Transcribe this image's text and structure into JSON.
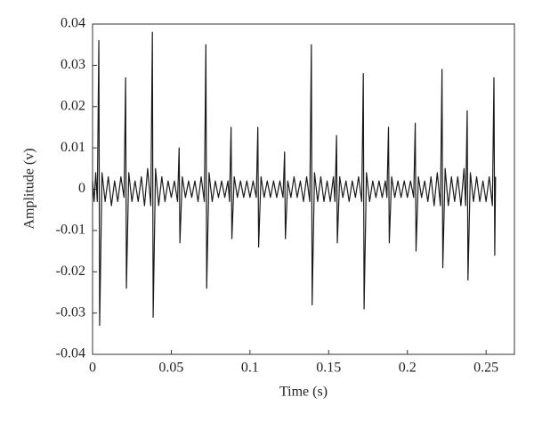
{
  "chart_data": {
    "type": "line",
    "xlabel": "Time (s)",
    "ylabel": "Amplitude (v)",
    "xlim": [
      0,
      0.268
    ],
    "ylim": [
      -0.04,
      0.04
    ],
    "xticks": [
      0,
      0.05,
      0.1,
      0.15,
      0.2,
      0.25
    ],
    "yticks": [
      0.04,
      0.03,
      0.02,
      0.01,
      0,
      -0.01,
      -0.02,
      -0.03,
      -0.04
    ],
    "x": [
      0,
      0.001,
      0.002,
      0.003,
      0.004,
      0.0045,
      0.006,
      0.008,
      0.01,
      0.012,
      0.014,
      0.016,
      0.018,
      0.02,
      0.021,
      0.0215,
      0.023,
      0.025,
      0.027,
      0.029,
      0.031,
      0.033,
      0.035,
      0.037,
      0.038,
      0.0385,
      0.04,
      0.042,
      0.044,
      0.046,
      0.048,
      0.05,
      0.052,
      0.054,
      0.055,
      0.0555,
      0.057,
      0.059,
      0.061,
      0.063,
      0.065,
      0.067,
      0.069,
      0.071,
      0.072,
      0.0725,
      0.074,
      0.076,
      0.078,
      0.08,
      0.082,
      0.084,
      0.086,
      0.087,
      0.088,
      0.0885,
      0.09,
      0.092,
      0.094,
      0.096,
      0.098,
      0.1,
      0.102,
      0.104,
      0.105,
      0.1055,
      0.107,
      0.109,
      0.111,
      0.113,
      0.115,
      0.117,
      0.119,
      0.121,
      0.122,
      0.1225,
      0.124,
      0.126,
      0.128,
      0.13,
      0.132,
      0.134,
      0.136,
      0.138,
      0.139,
      0.1395,
      0.141,
      0.143,
      0.145,
      0.147,
      0.149,
      0.151,
      0.153,
      0.154,
      0.155,
      0.1555,
      0.157,
      0.159,
      0.161,
      0.163,
      0.165,
      0.167,
      0.169,
      0.171,
      0.172,
      0.1725,
      0.174,
      0.176,
      0.178,
      0.18,
      0.182,
      0.184,
      0.186,
      0.187,
      0.188,
      0.1885,
      0.19,
      0.192,
      0.194,
      0.196,
      0.198,
      0.2,
      0.202,
      0.204,
      0.205,
      0.2055,
      0.207,
      0.209,
      0.211,
      0.213,
      0.215,
      0.217,
      0.219,
      0.221,
      0.222,
      0.2225,
      0.224,
      0.226,
      0.228,
      0.23,
      0.232,
      0.234,
      0.236,
      0.237,
      0.238,
      0.2385,
      0.24,
      0.242,
      0.244,
      0.246,
      0.248,
      0.25,
      0.252,
      0.254,
      0.255,
      0.2555,
      0.256
    ],
    "series": [
      {
        "color": "#1a1a1a",
        "values": [
          0.002,
          -0.003,
          0.004,
          -0.003,
          0.036,
          -0.033,
          0.004,
          -0.003,
          0.003,
          -0.004,
          0.002,
          -0.003,
          0.003,
          -0.002,
          0.027,
          -0.024,
          0.004,
          -0.003,
          0.002,
          -0.003,
          0.003,
          -0.004,
          0.005,
          -0.004,
          0.038,
          -0.031,
          0.005,
          -0.004,
          0.003,
          -0.003,
          0.002,
          -0.002,
          0.002,
          -0.003,
          0.01,
          -0.013,
          0.003,
          -0.002,
          0.002,
          -0.002,
          0.002,
          -0.003,
          0.003,
          -0.003,
          0.035,
          -0.024,
          0.004,
          -0.003,
          0.002,
          -0.002,
          0.002,
          -0.002,
          0.002,
          -0.003,
          0.015,
          -0.012,
          0.003,
          -0.002,
          0.002,
          -0.002,
          0.002,
          -0.002,
          0.002,
          -0.002,
          0.015,
          -0.014,
          0.003,
          -0.002,
          0.002,
          -0.002,
          0.002,
          -0.002,
          0.002,
          -0.002,
          0.009,
          -0.012,
          0.002,
          -0.002,
          0.003,
          -0.002,
          0.002,
          -0.003,
          0.003,
          -0.003,
          0.035,
          -0.028,
          0.004,
          -0.003,
          0.003,
          -0.003,
          0.002,
          -0.003,
          0.003,
          -0.003,
          0.013,
          -0.013,
          0.003,
          -0.002,
          0.002,
          -0.003,
          0.002,
          -0.002,
          0.003,
          -0.003,
          0.028,
          -0.029,
          0.004,
          -0.003,
          0.002,
          -0.002,
          0.002,
          -0.002,
          0.002,
          -0.002,
          0.015,
          -0.013,
          0.003,
          -0.002,
          0.002,
          -0.002,
          0.002,
          -0.002,
          0.002,
          -0.002,
          0.016,
          -0.015,
          0.003,
          -0.002,
          0.002,
          -0.003,
          0.003,
          -0.004,
          0.004,
          -0.004,
          0.029,
          -0.019,
          0.005,
          -0.004,
          0.003,
          -0.003,
          0.003,
          -0.004,
          0.005,
          -0.004,
          0.019,
          -0.022,
          0.004,
          -0.003,
          0.003,
          -0.003,
          0.002,
          -0.003,
          0.003,
          -0.004,
          0.027,
          -0.016,
          0.003
        ]
      }
    ]
  }
}
